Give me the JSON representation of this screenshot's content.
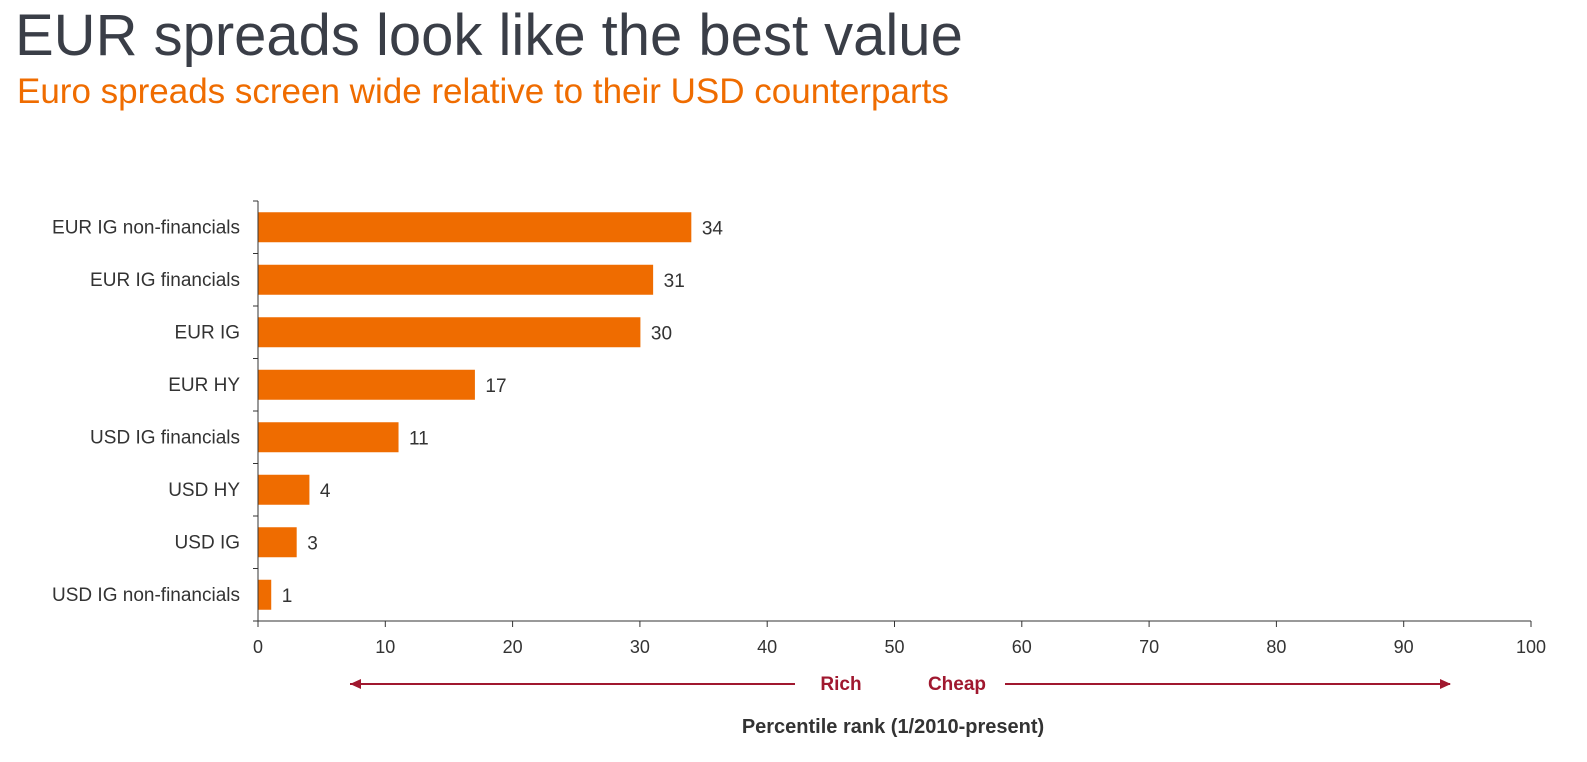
{
  "title": "EUR spreads look like the best value",
  "subtitle": "Euro spreads screen wide relative to their USD counterparts",
  "colors": {
    "bar": "#ef6c00",
    "title": "#3a3e47",
    "subtitle": "#ef6c00",
    "arrow": "#a0182f",
    "axis": "#333333"
  },
  "chart_data": {
    "type": "bar",
    "orientation": "horizontal",
    "categories": [
      "EUR IG non-financials",
      "EUR IG financials",
      "EUR IG",
      "EUR HY",
      "USD IG financials",
      "USD HY",
      "USD IG",
      "USD IG non-financials"
    ],
    "values": [
      34,
      31,
      30,
      17,
      11,
      4,
      3,
      1
    ],
    "data_labels": [
      "34",
      "31",
      "30",
      "17",
      "11",
      "4",
      "3",
      "1"
    ],
    "xlim": [
      0,
      100
    ],
    "xticks": [
      "0",
      "10",
      "20",
      "30",
      "40",
      "50",
      "60",
      "70",
      "80",
      "90",
      "100"
    ],
    "xlabel": "Percentile rank (1/2010-present)",
    "annotations": {
      "left_arrow_label": "Rich",
      "right_arrow_label": "Cheap"
    },
    "grid": false,
    "legend": "none"
  }
}
